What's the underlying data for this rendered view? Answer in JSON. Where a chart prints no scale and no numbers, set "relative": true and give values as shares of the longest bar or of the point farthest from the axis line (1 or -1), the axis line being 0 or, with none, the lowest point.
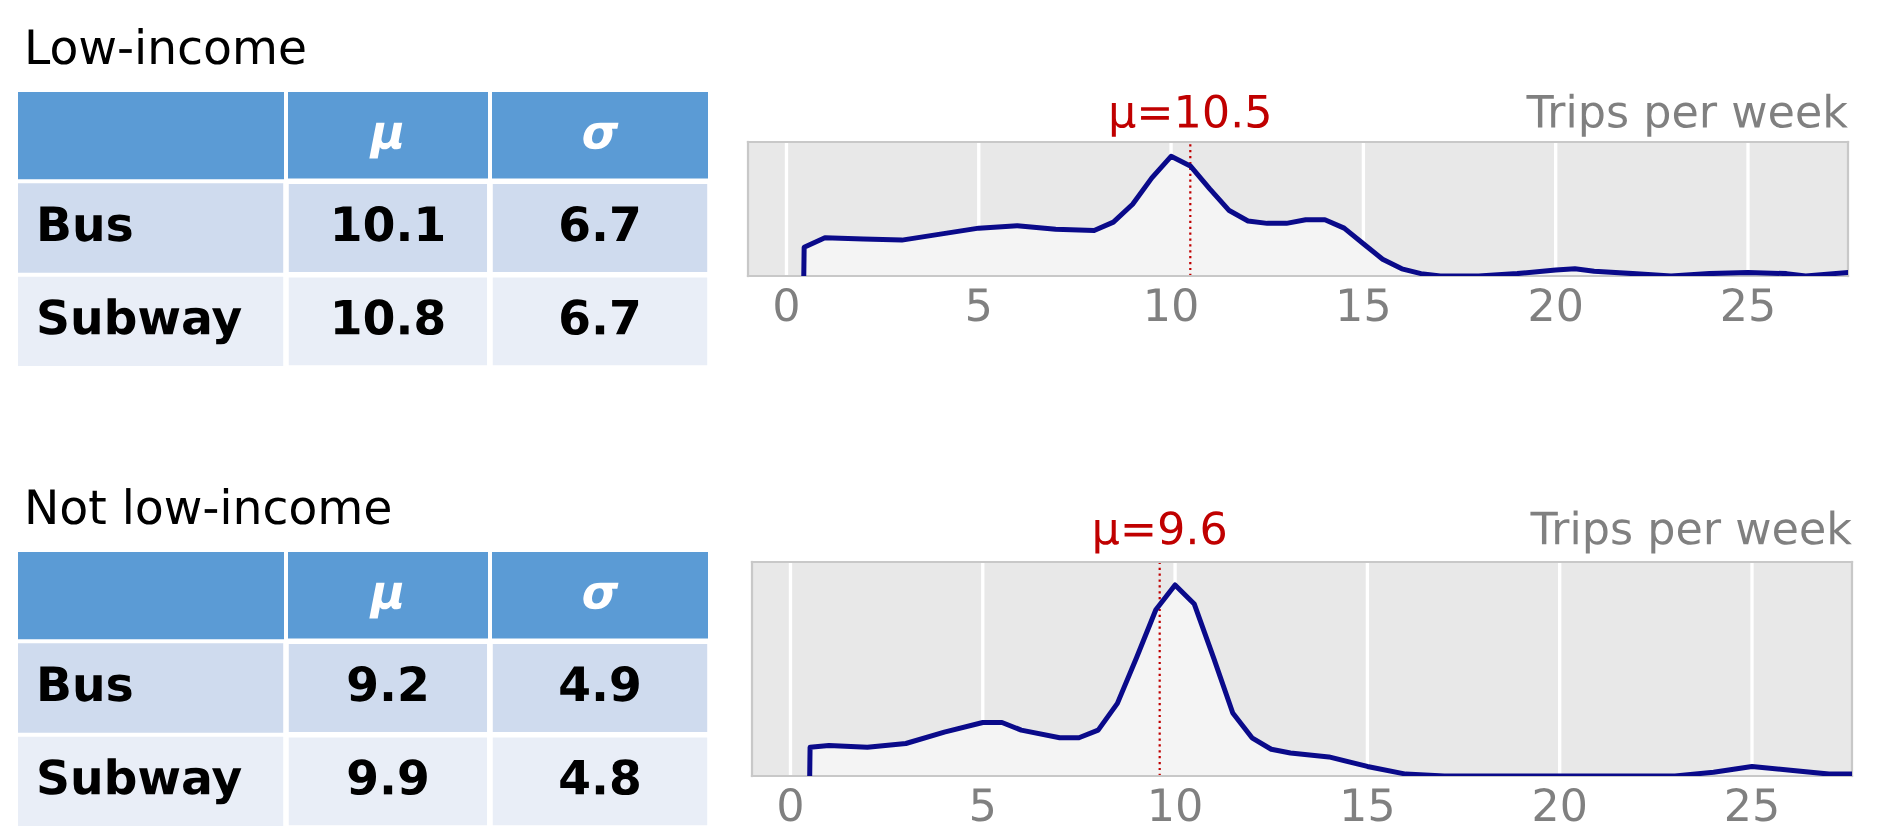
{
  "chart_data": [
    {
      "type": "heatmap",
      "title": "Low-income",
      "categories": [
        "μ",
        "σ"
      ],
      "y_categories": [
        "Bus",
        "Subway"
      ],
      "cells": [
        [
          10.1,
          6.7
        ],
        [
          10.8,
          6.7
        ]
      ],
      "data_labels": true,
      "colors": [
        "#5b9bd5",
        "#cfdbee",
        "#e9eef7"
      ]
    },
    {
      "type": "area",
      "xlabel": "Trips per week",
      "relative": true,
      "xlim": [
        -1,
        27.6
      ],
      "xticks": [
        0,
        5,
        10,
        15,
        20,
        25
      ],
      "grid": "x",
      "series": [
        {
          "color": "#0a0a8a",
          "x": [
            0.45,
            0.46,
            1.0,
            2.0,
            3.0,
            4.0,
            5.0,
            6.0,
            7.0,
            8.0,
            8.5,
            9.0,
            9.5,
            10.0,
            10.5,
            11.0,
            11.5,
            12.0,
            12.5,
            13.0,
            13.5,
            14.0,
            14.5,
            15.0,
            15.5,
            16.0,
            16.5,
            17.0,
            18.0,
            19.0,
            20.0,
            20.5,
            21.0,
            22.0,
            23.0,
            24.0,
            25.0,
            26.0,
            26.5,
            27.6
          ],
          "values": [
            0,
            0.24,
            0.32,
            0.31,
            0.3,
            0.35,
            0.4,
            0.42,
            0.39,
            0.38,
            0.45,
            0.6,
            0.82,
            1.0,
            0.92,
            0.73,
            0.55,
            0.46,
            0.44,
            0.44,
            0.47,
            0.47,
            0.4,
            0.27,
            0.14,
            0.06,
            0.02,
            0.0,
            0.0,
            0.02,
            0.05,
            0.06,
            0.04,
            0.02,
            0.0,
            0.02,
            0.03,
            0.02,
            0.0,
            0.03
          ]
        }
      ],
      "ref_lines": [
        {
          "axis": "x",
          "value": 10.5,
          "label": "μ=10.5",
          "color": "#c00000",
          "line_style": "dotted"
        }
      ]
    },
    {
      "type": "heatmap",
      "title": "Not low-income",
      "categories": [
        "μ",
        "σ"
      ],
      "y_categories": [
        "Bus",
        "Subway"
      ],
      "cells": [
        [
          9.2,
          4.9
        ],
        [
          9.9,
          4.8
        ]
      ],
      "data_labels": true,
      "colors": [
        "#5b9bd5",
        "#cfdbee",
        "#e9eef7"
      ]
    },
    {
      "type": "area",
      "xlabel": "Trips per week",
      "relative": true,
      "xlim": [
        -1,
        27.6
      ],
      "xticks": [
        0,
        5,
        10,
        15,
        20,
        25
      ],
      "grid": "x",
      "series": [
        {
          "color": "#0a0a8a",
          "x": [
            0.5,
            0.51,
            1.0,
            2.0,
            3.0,
            4.0,
            5.0,
            5.5,
            6.0,
            7.0,
            7.5,
            8.0,
            8.5,
            9.0,
            9.5,
            10.0,
            10.5,
            11.0,
            11.5,
            12.0,
            12.5,
            13.0,
            14.0,
            15.0,
            16.0,
            17.0,
            20.0,
            23.0,
            24.0,
            25.0,
            26.0,
            27.0,
            27.6
          ],
          "values": [
            0,
            0.15,
            0.16,
            0.15,
            0.17,
            0.23,
            0.28,
            0.28,
            0.24,
            0.2,
            0.2,
            0.24,
            0.38,
            0.62,
            0.87,
            1.0,
            0.9,
            0.62,
            0.33,
            0.2,
            0.14,
            0.12,
            0.1,
            0.05,
            0.01,
            0.0,
            0.0,
            0.0,
            0.02,
            0.05,
            0.03,
            0.01,
            0.01
          ]
        }
      ],
      "ref_lines": [
        {
          "axis": "x",
          "value": 9.6,
          "label": "μ=9.6",
          "color": "#c00000",
          "line_style": "dotted"
        }
      ]
    }
  ]
}
